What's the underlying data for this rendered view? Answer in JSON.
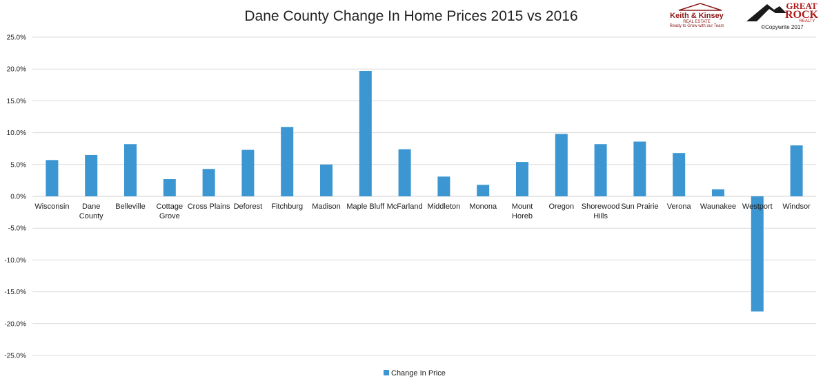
{
  "chart_data": {
    "type": "bar",
    "title": "Dane County Change In Home Prices 2015 vs 2016",
    "xlabel": "",
    "ylabel": "",
    "ylim": [
      -25,
      25
    ],
    "yticks": [
      "25.0%",
      "20.0%",
      "15.0%",
      "10.0%",
      "5.0%",
      "0.0%",
      "-5.0%",
      "-10.0%",
      "-15.0%",
      "-20.0%",
      "-25.0%"
    ],
    "grid": true,
    "legend_position": "bottom",
    "categories": [
      "Wisconsin",
      "Dane County",
      "Belleville",
      "Cottage Grove",
      "Cross Plains",
      "Deforest",
      "Fitchburg",
      "Madison",
      "Maple Bluff",
      "McFarland",
      "Middleton",
      "Monona",
      "Mount Horeb",
      "Oregon",
      "Shorewood Hills",
      "Sun Prairie",
      "Verona",
      "Waunakee",
      "Westport",
      "Windsor"
    ],
    "category_lines": [
      [
        "Wisconsin"
      ],
      [
        "Dane",
        "County"
      ],
      [
        "Belleville"
      ],
      [
        "Cottage",
        "Grove"
      ],
      [
        "Cross Plains"
      ],
      [
        "Deforest"
      ],
      [
        "Fitchburg"
      ],
      [
        "Madison"
      ],
      [
        "Maple Bluff"
      ],
      [
        "McFarland"
      ],
      [
        "Middleton"
      ],
      [
        "Monona"
      ],
      [
        "Mount",
        "Horeb"
      ],
      [
        "Oregon"
      ],
      [
        "Shorewood",
        "Hills"
      ],
      [
        "Sun Prairie"
      ],
      [
        "Verona"
      ],
      [
        "Waunakee"
      ],
      [
        "Westport"
      ],
      [
        "Windsor"
      ]
    ],
    "series": [
      {
        "name": "Change In Price",
        "color": "#3b96d2",
        "values": [
          5.7,
          6.5,
          8.2,
          2.7,
          4.3,
          7.3,
          10.9,
          5.0,
          19.7,
          7.4,
          3.1,
          1.8,
          5.4,
          9.8,
          8.2,
          8.6,
          6.8,
          1.1,
          -18.1,
          8.0
        ]
      }
    ]
  },
  "logos": {
    "keith_kinsey": {
      "line1": "Keith & Kinsey",
      "line2": "REAL ESTATE",
      "line3": "Ready to Grow with our Team"
    },
    "great_rock": {
      "line1": "GREAT",
      "line2": "ROCK",
      "line3": "REALTY"
    },
    "copyright": "©Copywrite 2017"
  }
}
